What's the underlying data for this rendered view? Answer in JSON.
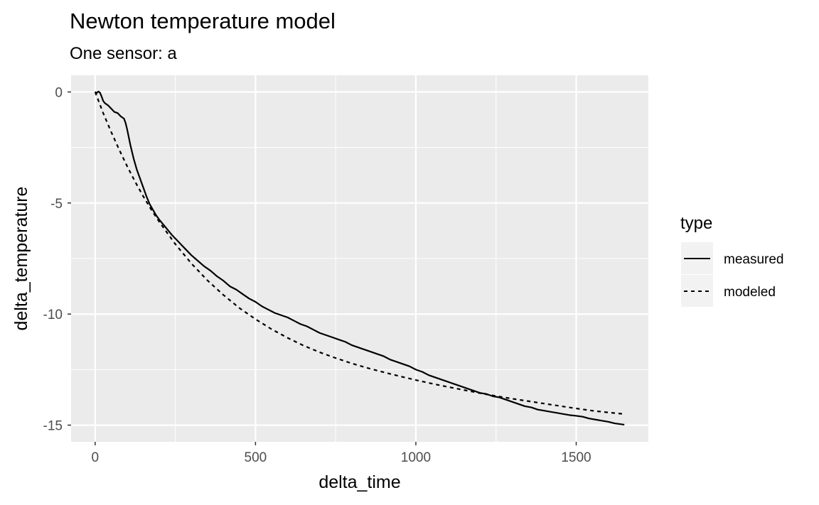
{
  "chart_data": {
    "type": "line",
    "title": "Newton temperature model",
    "subtitle": "One sensor: a",
    "xlabel": "delta_time",
    "ylabel": "delta_temperature",
    "xlim": [
      -75,
      1725
    ],
    "ylim": [
      -15.75,
      0.75
    ],
    "x_ticks": [
      0,
      500,
      1000,
      1500
    ],
    "x_tick_labels": [
      "0",
      "500",
      "1000",
      "1500"
    ],
    "y_ticks": [
      0,
      -5,
      -10,
      -15
    ],
    "y_tick_labels": [
      "0",
      "-5",
      "-10",
      "-15"
    ],
    "grid": true,
    "panel_background": "#ebebeb",
    "grid_color": "#ffffff",
    "legend": {
      "title": "type",
      "position": "right",
      "entries": [
        {
          "label": "measured",
          "linetype": "solid"
        },
        {
          "label": "modeled",
          "linetype": "dashed"
        }
      ]
    },
    "series": [
      {
        "name": "measured",
        "linetype": "solid",
        "color": "#000000",
        "points": [
          [
            0,
            0
          ],
          [
            5,
            -0.05
          ],
          [
            10,
            0.02
          ],
          [
            15,
            -0.03
          ],
          [
            20,
            -0.2
          ],
          [
            25,
            -0.4
          ],
          [
            30,
            -0.5
          ],
          [
            40,
            -0.6
          ],
          [
            50,
            -0.75
          ],
          [
            60,
            -0.9
          ],
          [
            70,
            -0.95
          ],
          [
            80,
            -1.1
          ],
          [
            90,
            -1.2
          ],
          [
            95,
            -1.4
          ],
          [
            100,
            -1.7
          ],
          [
            110,
            -2.4
          ],
          [
            120,
            -3.0
          ],
          [
            130,
            -3.5
          ],
          [
            140,
            -3.9
          ],
          [
            150,
            -4.3
          ],
          [
            160,
            -4.7
          ],
          [
            170,
            -5.05
          ],
          [
            180,
            -5.3
          ],
          [
            190,
            -5.55
          ],
          [
            200,
            -5.75
          ],
          [
            220,
            -6.1
          ],
          [
            240,
            -6.45
          ],
          [
            260,
            -6.75
          ],
          [
            280,
            -7.05
          ],
          [
            300,
            -7.35
          ],
          [
            320,
            -7.6
          ],
          [
            340,
            -7.85
          ],
          [
            360,
            -8.05
          ],
          [
            380,
            -8.3
          ],
          [
            400,
            -8.5
          ],
          [
            420,
            -8.75
          ],
          [
            440,
            -8.9
          ],
          [
            460,
            -9.1
          ],
          [
            480,
            -9.3
          ],
          [
            500,
            -9.45
          ],
          [
            520,
            -9.65
          ],
          [
            540,
            -9.8
          ],
          [
            560,
            -9.95
          ],
          [
            580,
            -10.05
          ],
          [
            600,
            -10.15
          ],
          [
            620,
            -10.3
          ],
          [
            640,
            -10.45
          ],
          [
            660,
            -10.55
          ],
          [
            680,
            -10.7
          ],
          [
            700,
            -10.85
          ],
          [
            720,
            -10.95
          ],
          [
            740,
            -11.05
          ],
          [
            760,
            -11.15
          ],
          [
            780,
            -11.25
          ],
          [
            800,
            -11.4
          ],
          [
            820,
            -11.5
          ],
          [
            840,
            -11.6
          ],
          [
            860,
            -11.7
          ],
          [
            880,
            -11.8
          ],
          [
            900,
            -11.9
          ],
          [
            920,
            -12.05
          ],
          [
            940,
            -12.15
          ],
          [
            960,
            -12.25
          ],
          [
            980,
            -12.35
          ],
          [
            1000,
            -12.5
          ],
          [
            1020,
            -12.6
          ],
          [
            1040,
            -12.75
          ],
          [
            1060,
            -12.85
          ],
          [
            1080,
            -12.95
          ],
          [
            1100,
            -13.05
          ],
          [
            1120,
            -13.15
          ],
          [
            1140,
            -13.25
          ],
          [
            1160,
            -13.35
          ],
          [
            1180,
            -13.45
          ],
          [
            1200,
            -13.55
          ],
          [
            1220,
            -13.6
          ],
          [
            1240,
            -13.7
          ],
          [
            1260,
            -13.75
          ],
          [
            1280,
            -13.85
          ],
          [
            1300,
            -13.95
          ],
          [
            1320,
            -14.05
          ],
          [
            1340,
            -14.15
          ],
          [
            1360,
            -14.2
          ],
          [
            1380,
            -14.3
          ],
          [
            1400,
            -14.35
          ],
          [
            1420,
            -14.4
          ],
          [
            1440,
            -14.45
          ],
          [
            1460,
            -14.5
          ],
          [
            1480,
            -14.55
          ],
          [
            1500,
            -14.58
          ],
          [
            1520,
            -14.62
          ],
          [
            1540,
            -14.7
          ],
          [
            1560,
            -14.75
          ],
          [
            1580,
            -14.8
          ],
          [
            1600,
            -14.85
          ],
          [
            1620,
            -14.92
          ],
          [
            1650,
            -14.98
          ]
        ]
      },
      {
        "name": "modeled",
        "linetype": "dashed",
        "color": "#000000",
        "points": [
          [
            0,
            0
          ],
          [
            25,
            -0.95
          ],
          [
            50,
            -1.8
          ],
          [
            75,
            -2.6
          ],
          [
            100,
            -3.35
          ],
          [
            125,
            -4.05
          ],
          [
            150,
            -4.7
          ],
          [
            175,
            -5.3
          ],
          [
            200,
            -5.85
          ],
          [
            250,
            -6.85
          ],
          [
            300,
            -7.72
          ],
          [
            350,
            -8.48
          ],
          [
            400,
            -9.14
          ],
          [
            450,
            -9.73
          ],
          [
            500,
            -10.23
          ],
          [
            550,
            -10.68
          ],
          [
            600,
            -11.07
          ],
          [
            650,
            -11.42
          ],
          [
            700,
            -11.72
          ],
          [
            750,
            -11.98
          ],
          [
            800,
            -12.22
          ],
          [
            850,
            -12.43
          ],
          [
            900,
            -12.62
          ],
          [
            950,
            -12.8
          ],
          [
            1000,
            -12.97
          ],
          [
            1050,
            -13.13
          ],
          [
            1100,
            -13.28
          ],
          [
            1150,
            -13.42
          ],
          [
            1200,
            -13.56
          ],
          [
            1250,
            -13.69
          ],
          [
            1300,
            -13.81
          ],
          [
            1350,
            -13.92
          ],
          [
            1400,
            -14.03
          ],
          [
            1450,
            -14.14
          ],
          [
            1500,
            -14.25
          ],
          [
            1550,
            -14.35
          ],
          [
            1600,
            -14.43
          ],
          [
            1650,
            -14.5
          ]
        ]
      }
    ]
  }
}
